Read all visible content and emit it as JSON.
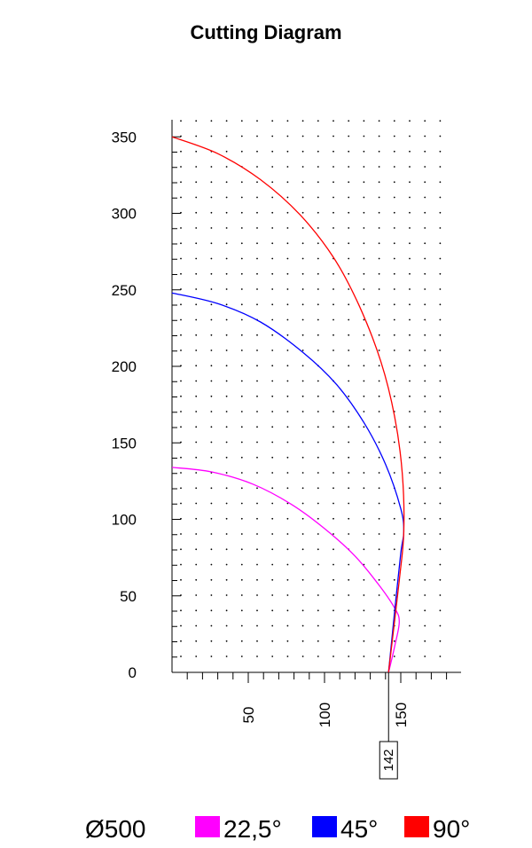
{
  "title": "Cutting Diagram",
  "chart_data": {
    "type": "line",
    "title": "Cutting Diagram",
    "xlabel": "",
    "ylabel": "",
    "xlim": [
      0,
      180
    ],
    "ylim": [
      0,
      350
    ],
    "grid": "dots",
    "y_ticks": [
      "0",
      "50",
      "100",
      "150",
      "200",
      "250",
      "300",
      "350"
    ],
    "x_ticks": [
      "50",
      "100",
      "150"
    ],
    "marker": {
      "x": 142,
      "label": "142"
    },
    "series": [
      {
        "name": "22,5°",
        "color": "#ff00ff",
        "points": [
          [
            0,
            134
          ],
          [
            26,
            131
          ],
          [
            53,
            123
          ],
          [
            78,
            110
          ],
          [
            100,
            94
          ],
          [
            120,
            76
          ],
          [
            135,
            58
          ],
          [
            146,
            42
          ],
          [
            149,
            33
          ],
          [
            146,
            17
          ],
          [
            142,
            0
          ]
        ]
      },
      {
        "name": "45°",
        "color": "#0000ff",
        "points": [
          [
            0,
            248
          ],
          [
            30,
            241
          ],
          [
            58,
            229
          ],
          [
            86,
            209
          ],
          [
            108,
            188
          ],
          [
            126,
            163
          ],
          [
            140,
            136
          ],
          [
            150,
            107
          ],
          [
            152,
            92
          ],
          [
            150,
            78
          ],
          [
            146,
            40
          ],
          [
            142,
            0
          ]
        ]
      },
      {
        "name": "90°",
        "color": "#ff0000",
        "points": [
          [
            0,
            350
          ],
          [
            30,
            339
          ],
          [
            58,
            322
          ],
          [
            84,
            299
          ],
          [
            106,
            271
          ],
          [
            123,
            239
          ],
          [
            137,
            203
          ],
          [
            146,
            167
          ],
          [
            151,
            130
          ],
          [
            152,
            92
          ],
          [
            149,
            60
          ],
          [
            142,
            0
          ]
        ]
      }
    ]
  },
  "legend": {
    "diameter": "Ø500",
    "items": [
      {
        "label": "22,5°",
        "color": "#ff00ff"
      },
      {
        "label": "45°",
        "color": "#0000ff"
      },
      {
        "label": "90°",
        "color": "#ff0000"
      }
    ]
  }
}
